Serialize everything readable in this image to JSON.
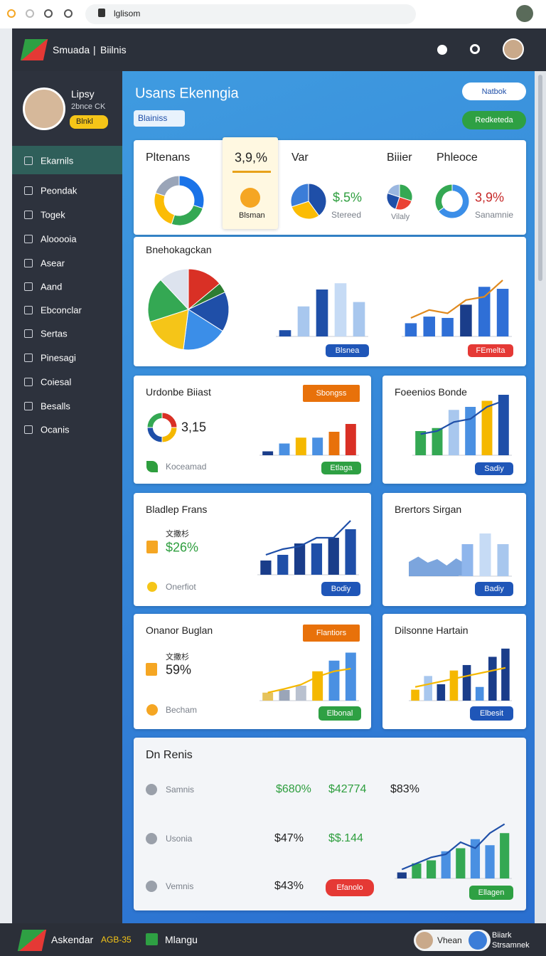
{
  "browser": {
    "url": "lglisom"
  },
  "header": {
    "brand": "Smuada",
    "separator": "|",
    "section": "Biilnis"
  },
  "sidebar": {
    "profile": {
      "name": "Lipsy",
      "role": "2bnce CK",
      "badge": "Blnkl"
    },
    "menu": [
      "Ekarnils",
      "Peondak",
      "Togek",
      "Alooooia",
      "Asear",
      "Aand",
      "Ebconclar",
      "Sertas",
      "Pinesagi",
      "Coiesal",
      "Besalls",
      "Ocanis"
    ]
  },
  "main": {
    "title": "Usans Ekenngia",
    "dropdown": "Blainiss",
    "buttons": [
      "Natbok",
      "Redketeda"
    ]
  },
  "summary": [
    {
      "title": "Pltenans",
      "chart": {
        "type": "donut",
        "values": [
          30,
          25,
          25,
          20
        ],
        "colors": [
          "#1a73e8",
          "#34a853",
          "#fbbc05",
          "#9aa5b8"
        ]
      }
    },
    {
      "title": "3,9,%",
      "caption": "Blsman"
    },
    {
      "title": "Var",
      "value": "$.5%",
      "caption": "Stereed",
      "chart": {
        "type": "pie",
        "values": [
          40,
          30,
          30
        ],
        "colors": [
          "#1f4fa8",
          "#fbbc05",
          "#3b7dd8"
        ]
      }
    },
    {
      "title": "Biiier",
      "caption": "Vilaly",
      "chart": {
        "type": "pie",
        "values": [
          30,
          25,
          25,
          20
        ],
        "colors": [
          "#34a853",
          "#ea4335",
          "#1f4fa8",
          "#9bb7e0"
        ]
      }
    },
    {
      "title": "Phleoce",
      "value": "3,9%",
      "caption": "Sanamnie",
      "chart": {
        "type": "donut",
        "values": [
          65,
          35
        ],
        "colors": [
          "#3b8ee8",
          "#34a853"
        ]
      }
    }
  ],
  "overview": {
    "title": "Bnehokagckan",
    "buttons": [
      "Blsnea",
      "FEmelta"
    ],
    "charts": [
      {
        "type": "pie",
        "values": [
          14,
          4,
          16,
          18,
          18,
          18,
          12
        ],
        "colors": [
          "#d93025",
          "#2e7d32",
          "#1f4fa8",
          "#3b8ee8",
          "#f5c518",
          "#34a853",
          "#dde3ee"
        ]
      },
      {
        "type": "bar",
        "ylim": [
          0,
          100
        ],
        "values": [
          10,
          48,
          75,
          85,
          55
        ],
        "colors": [
          "#1f4fa8",
          "#a8c7ee",
          "#1f4fa8",
          "#c6dbf5",
          "#a8c7ee"
        ]
      },
      {
        "type": "combo",
        "ylim": [
          0,
          100
        ],
        "values": [
          20,
          30,
          28,
          48,
          75,
          72
        ],
        "colors": [
          "#2f6fd6",
          "#2f6fd6",
          "#2f6fd6",
          "#1a3d8a",
          "#2f6fd6",
          "#2f6fd6"
        ],
        "line": [
          28,
          40,
          35,
          55,
          60,
          85
        ],
        "line_color": "#e08a1e"
      }
    ]
  },
  "cards": [
    {
      "title": "Urdonbe Biiast",
      "tag": "Sbongss",
      "value": "3,15",
      "caption": "Koceamad",
      "button": "Etlaga",
      "charts": [
        {
          "type": "donut",
          "values": [
            25,
            25,
            25,
            25
          ],
          "colors": [
            "#d93025",
            "#f5b800",
            "#1f4fa8",
            "#34a853"
          ]
        },
        {
          "type": "bar",
          "ylim": [
            0,
            100
          ],
          "values": [
            10,
            30,
            45,
            45,
            60,
            80
          ],
          "colors": [
            "#1a3d8a",
            "#4a90e2",
            "#f5b800",
            "#4a90e2",
            "#e8710a",
            "#d93025"
          ]
        }
      ]
    },
    {
      "title": "Foeenios Bonde",
      "button": "Sadiy",
      "charts": [
        {
          "type": "combo",
          "ylim": [
            0,
            100
          ],
          "values": [
            40,
            45,
            75,
            80,
            90,
            100
          ],
          "colors": [
            "#34a853",
            "#34a853",
            "#a8c7ee",
            "#4a90e2",
            "#f5b800",
            "#1f4fa8"
          ],
          "line": [
            35,
            40,
            55,
            60,
            80,
            90
          ],
          "line_color": "#1f4fa8"
        }
      ]
    },
    {
      "title": "Bladlep Frans",
      "note": "文撒杉",
      "value": "$26%",
      "caption": "Onerfiot",
      "button": "Bodiy",
      "charts": [
        {
          "type": "combo",
          "ylim": [
            0,
            100
          ],
          "values": [
            25,
            35,
            55,
            55,
            65,
            80
          ],
          "colors": [
            "#1a3d8a",
            "#1f4fa8",
            "#1a3d8a",
            "#1f4fa8",
            "#1a3d8a",
            "#1f4fa8"
          ],
          "line": [
            35,
            45,
            50,
            65,
            65,
            95
          ],
          "line_color": "#1f4fa8"
        }
      ]
    },
    {
      "title": "Brertors Sirgan",
      "button": "Badiy",
      "charts": [
        {
          "type": "area",
          "ylim": [
            0,
            100
          ],
          "values": [
            40,
            55,
            38,
            48,
            30,
            50,
            35
          ],
          "color": "#5b8fd4"
        },
        {
          "type": "bar",
          "ylim": [
            0,
            100
          ],
          "values": [
            60,
            80,
            60
          ],
          "colors": [
            "#8fb6ec",
            "#c6dbf5",
            "#a8c7ee"
          ]
        }
      ]
    },
    {
      "title": "Onanor Buglan",
      "tag": "Flantiors",
      "note": "文撒杉",
      "value": "59%",
      "caption": "Becham",
      "button": "Elbonal",
      "charts": [
        {
          "type": "combo",
          "ylim": [
            0,
            100
          ],
          "values": [
            15,
            20,
            28,
            55,
            75,
            90
          ],
          "colors": [
            "#e6c35c",
            "#9aa5b8",
            "#b9c1cf",
            "#f5b800",
            "#4a90e2",
            "#4a90e2"
          ],
          "line": [
            15,
            22,
            30,
            45,
            55,
            60
          ],
          "line_color": "#f5b800"
        }
      ]
    },
    {
      "title": "Dilsonne Hartain",
      "button": "Elbesit",
      "charts": [
        {
          "type": "combo",
          "ylim": [
            0,
            100
          ],
          "values": [
            20,
            45,
            30,
            55,
            65,
            25,
            80,
            95
          ],
          "colors": [
            "#f5b800",
            "#a8c7ee",
            "#1a3d8a",
            "#f5b800",
            "#1a3d8a",
            "#4a90e2",
            "#1a3d8a",
            "#1a3d8a"
          ],
          "line": [
            25,
            30,
            35,
            40,
            45,
            50,
            55,
            60
          ],
          "line_color": "#f5b800"
        }
      ]
    }
  ],
  "report": {
    "title": "Dn Renis",
    "rows": [
      {
        "name": "Samnis",
        "cells": [
          "$680%",
          "$42774",
          "$83%"
        ]
      },
      {
        "name": "Usonia",
        "cells": [
          "$47%",
          "$$.144"
        ]
      },
      {
        "name": "Vemnis",
        "cells": [
          "$43%"
        ],
        "button": "Efanolo"
      }
    ],
    "button": "Ellagen",
    "chart": {
      "type": "combo",
      "ylim": [
        0,
        100
      ],
      "values": [
        10,
        25,
        30,
        45,
        50,
        65,
        55,
        75
      ],
      "colors": [
        "#1a3d8a",
        "#34a853",
        "#34a853",
        "#4a90e2",
        "#34a853",
        "#4a90e2",
        "#4a90e2",
        "#34a853"
      ],
      "line": [
        15,
        25,
        35,
        40,
        60,
        50,
        75,
        90
      ],
      "line_color": "#1f4fa8"
    }
  },
  "footer": {
    "brand": "Askendar",
    "code": "AGB-35",
    "app": "Mlangu",
    "user": "Vhean",
    "user2": [
      "Biiark",
      "Strsamnek"
    ]
  }
}
